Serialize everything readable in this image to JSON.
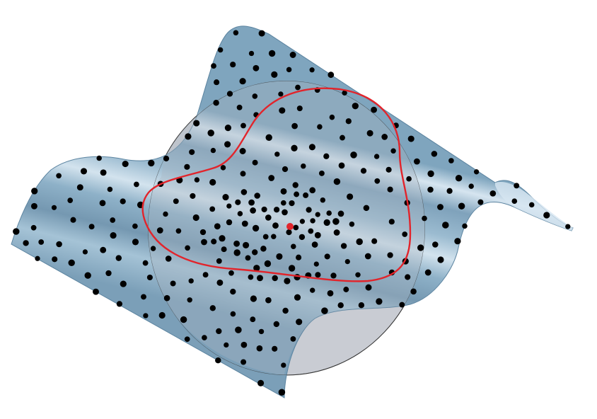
{
  "figure": {
    "type": "3d-surface-with-sample-points",
    "elements": [
      "wavy-surface",
      "reference-disc",
      "sample-points",
      "red-boundary-curve",
      "red-center-point"
    ]
  },
  "colors": {
    "surface": "#8fb4cc",
    "surface_highlight": "#dbe8f2",
    "surface_shadow": "#6f96b0",
    "disc": "#c9ccd3",
    "disc_edge": "#333333",
    "points": "#000000",
    "boundary_curve": "#e2242b",
    "center_point": "#e2242b"
  }
}
